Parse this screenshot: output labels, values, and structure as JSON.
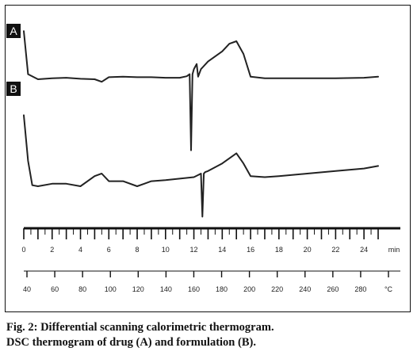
{
  "caption": {
    "line1": "Fig. 2: Differential scanning calorimetric thermogram.",
    "line2": "DSC thermogram of drug (A) and formulation (B)."
  },
  "chart_data": {
    "type": "line",
    "title": "",
    "xlabel": "",
    "ylabel": "",
    "grid": false,
    "legend": "none",
    "line_color": "#222222",
    "time_axis": {
      "ticks": [
        "0",
        "2",
        "4",
        "6",
        "8",
        "10",
        "12",
        "14",
        "16",
        "18",
        "20",
        "22",
        "24",
        "min"
      ]
    },
    "temperature_axis": {
      "ticks": [
        "40",
        "60",
        "80",
        "100",
        "120",
        "140",
        "160",
        "180",
        "200",
        "220",
        "240",
        "260",
        "280",
        "°C"
      ]
    },
    "series": [
      {
        "name": "A",
        "x": [
          0,
          0.3,
          1,
          2,
          3,
          4,
          5,
          5.5,
          6,
          7,
          8,
          9,
          10,
          11,
          11.5,
          11.7,
          11.8,
          11.9,
          12.0,
          12.1,
          12.2,
          12.3,
          12.5,
          13,
          14,
          14.5,
          15,
          15.5,
          16,
          17,
          18,
          20,
          22,
          24,
          25
        ],
        "y": [
          0.95,
          0.1,
          0.0,
          0.02,
          0.03,
          0.01,
          0.0,
          -0.05,
          0.04,
          0.05,
          0.04,
          0.04,
          0.03,
          0.03,
          0.06,
          0.1,
          -1.4,
          0.1,
          0.2,
          0.25,
          0.3,
          0.05,
          0.2,
          0.35,
          0.55,
          0.7,
          0.75,
          0.5,
          0.05,
          0.02,
          0.02,
          0.02,
          0.02,
          0.03,
          0.05
        ]
      },
      {
        "name": "B",
        "x": [
          0,
          0.3,
          0.6,
          1,
          2,
          3,
          4,
          5,
          5.5,
          6,
          7,
          8,
          8.5,
          9,
          10,
          11,
          12,
          12.3,
          12.5,
          12.6,
          12.7,
          12.8,
          13,
          14,
          15,
          15.5,
          16,
          17,
          18,
          20,
          22,
          24,
          25
        ],
        "y": [
          1.4,
          0.5,
          0.02,
          0.0,
          0.05,
          0.05,
          0.0,
          0.2,
          0.25,
          0.1,
          0.1,
          0.0,
          0.05,
          0.1,
          0.12,
          0.15,
          0.18,
          0.22,
          0.25,
          -0.6,
          0.25,
          0.28,
          0.3,
          0.45,
          0.65,
          0.45,
          0.2,
          0.18,
          0.2,
          0.25,
          0.3,
          0.35,
          0.4
        ]
      }
    ]
  }
}
